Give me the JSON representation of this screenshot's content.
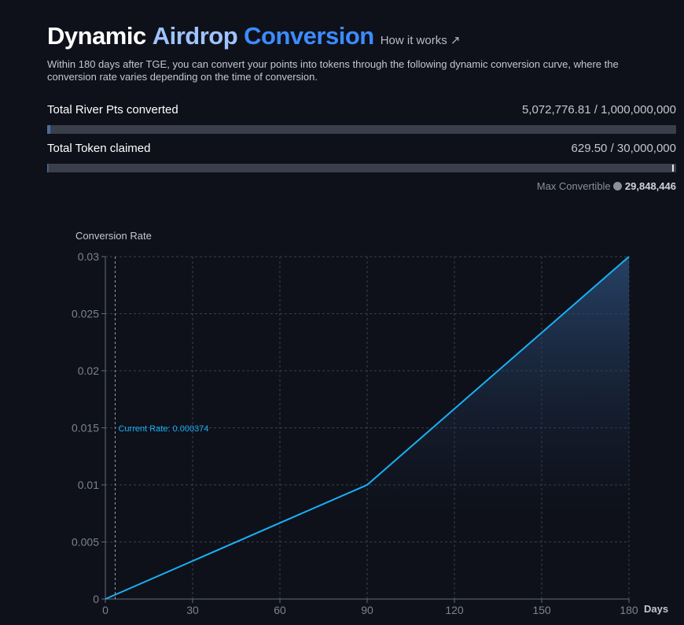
{
  "header": {
    "title_words": [
      {
        "text": "Dynamic",
        "color": "#ffffff"
      },
      {
        "text": "Airdrop",
        "color": "#9ec3ff"
      },
      {
        "text": "Conversion",
        "color": "#3d8bff"
      }
    ],
    "link": "How it works ↗",
    "description": "Within 180 days after TGE, you can convert your points into tokens through the following dynamic conversion curve, where the conversion rate varies depending on the time of conversion."
  },
  "progress": {
    "separator": "/",
    "rows": [
      {
        "label": "Total River Pts converted",
        "current": {
          "value": 5072776.81,
          "label": "5,072,776.81"
        },
        "total": {
          "value": 1000000000,
          "label": "1,000,000,000"
        }
      },
      {
        "label": "Total Token claimed",
        "current": {
          "value": 629.5,
          "label": "629.50"
        },
        "total": {
          "value": 30000000,
          "label": "30,000,000"
        }
      }
    ],
    "max_convertible": {
      "label": "Max Convertible",
      "value": {
        "value": 29848446,
        "label": "29,848,446"
      }
    }
  },
  "chart_data": {
    "type": "line",
    "y_label": "Conversion Rate",
    "x_label": "Days",
    "x": [
      0,
      90,
      180
    ],
    "series": [
      {
        "color": "#1ab0f5",
        "values": [
          0,
          0.01,
          0.03
        ]
      }
    ],
    "xlim": [
      0,
      180
    ],
    "xticks": [
      0,
      30,
      60,
      90,
      120,
      150,
      180
    ],
    "ylim": [
      0,
      0.03
    ],
    "yticks": [
      0,
      0.005,
      0.01,
      0.015,
      0.02,
      0.025,
      0.03
    ],
    "grid": true,
    "annotation": {
      "x": 3.37,
      "text": "Current Rate: 0.000374"
    }
  }
}
